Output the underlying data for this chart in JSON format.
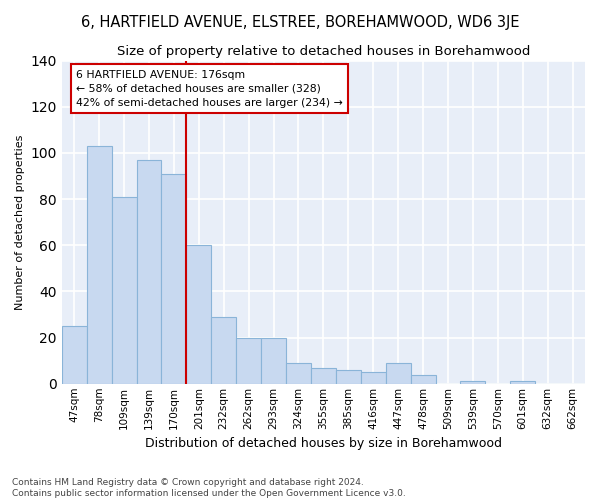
{
  "title": "6, HARTFIELD AVENUE, ELSTREE, BOREHAMWOOD, WD6 3JE",
  "subtitle": "Size of property relative to detached houses in Borehamwood",
  "xlabel": "Distribution of detached houses by size in Borehamwood",
  "ylabel": "Number of detached properties",
  "footer1": "Contains HM Land Registry data © Crown copyright and database right 2024.",
  "footer2": "Contains public sector information licensed under the Open Government Licence v3.0.",
  "categories": [
    "47sqm",
    "78sqm",
    "109sqm",
    "139sqm",
    "170sqm",
    "201sqm",
    "232sqm",
    "262sqm",
    "293sqm",
    "324sqm",
    "355sqm",
    "385sqm",
    "416sqm",
    "447sqm",
    "478sqm",
    "509sqm",
    "539sqm",
    "570sqm",
    "601sqm",
    "632sqm",
    "662sqm"
  ],
  "values": [
    25,
    103,
    81,
    97,
    91,
    60,
    29,
    20,
    20,
    9,
    7,
    6,
    5,
    9,
    4,
    0,
    1,
    0,
    1,
    0,
    0
  ],
  "bar_color": "#c8d9f0",
  "bar_edge_color": "#8ab4d8",
  "vline_index": 4,
  "vline_color": "#cc0000",
  "annotation_line1": "6 HARTFIELD AVENUE: 176sqm",
  "annotation_line2": "← 58% of detached houses are smaller (328)",
  "annotation_line3": "42% of semi-detached houses are larger (234) →",
  "ylim": [
    0,
    140
  ],
  "yticks": [
    0,
    20,
    40,
    60,
    80,
    100,
    120,
    140
  ],
  "bg_color": "#ffffff",
  "plot_bg_color": "#e8eef8",
  "grid_color": "#ffffff",
  "title_fontsize": 10.5,
  "subtitle_fontsize": 9.5,
  "ylabel_fontsize": 8,
  "xlabel_fontsize": 9,
  "tick_fontsize": 7.5,
  "footer_fontsize": 6.5
}
